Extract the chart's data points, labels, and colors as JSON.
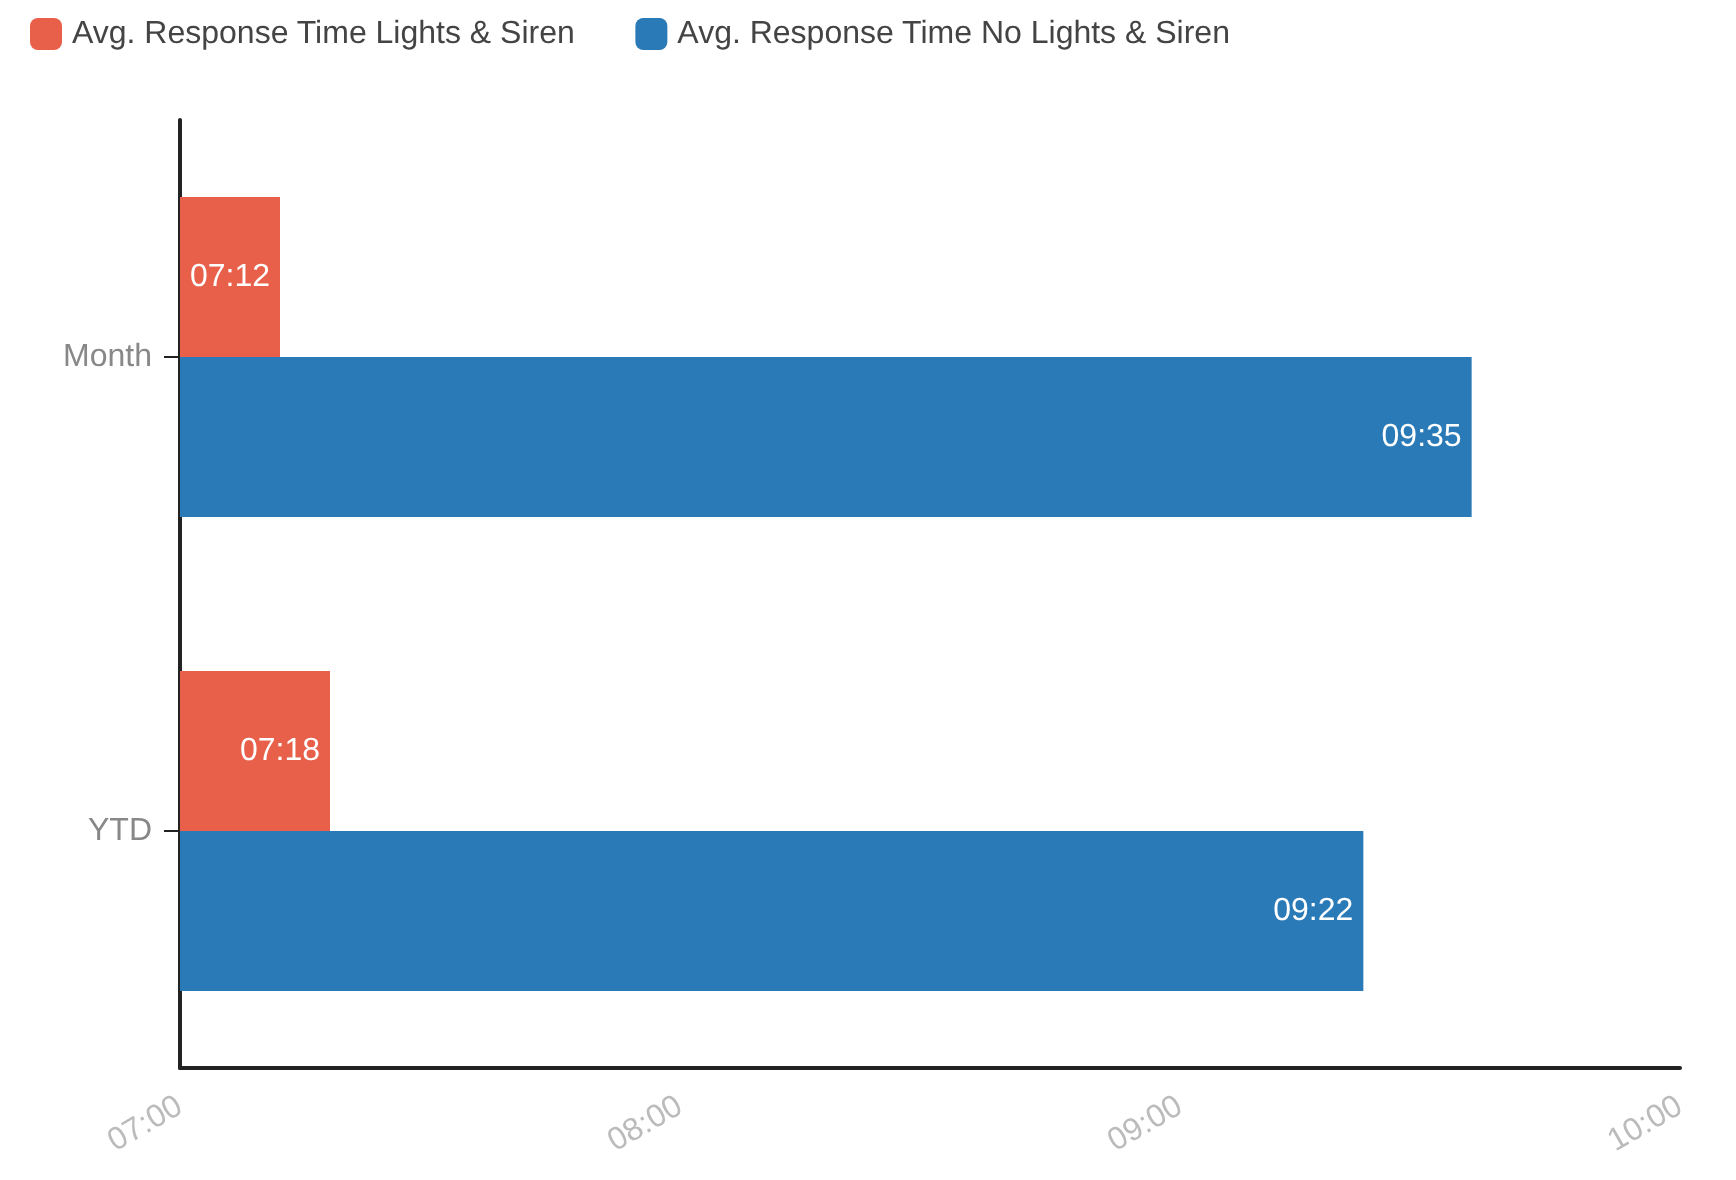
{
  "chart_data": {
    "type": "bar",
    "orientation": "horizontal",
    "categories": [
      "Month",
      "YTD"
    ],
    "series": [
      {
        "name": "Avg. Response Time Lights & Siren",
        "color": "#e8604a",
        "values": [
          7.2,
          7.3
        ],
        "value_labels": [
          "07:12",
          "07:18"
        ]
      },
      {
        "name": "Avg. Response Time No Lights & Siren",
        "color": "#2a7ab8",
        "values": [
          9.5833,
          9.3667
        ],
        "value_labels": [
          "09:35",
          "09:22"
        ]
      }
    ],
    "xlim": [
      7,
      10
    ],
    "xticks": [
      {
        "value": 7,
        "label": "07:00"
      },
      {
        "value": 8,
        "label": "08:00"
      },
      {
        "value": 9,
        "label": "09:00"
      },
      {
        "value": 10,
        "label": "10:00"
      }
    ],
    "grid": false,
    "legend": "top left"
  }
}
